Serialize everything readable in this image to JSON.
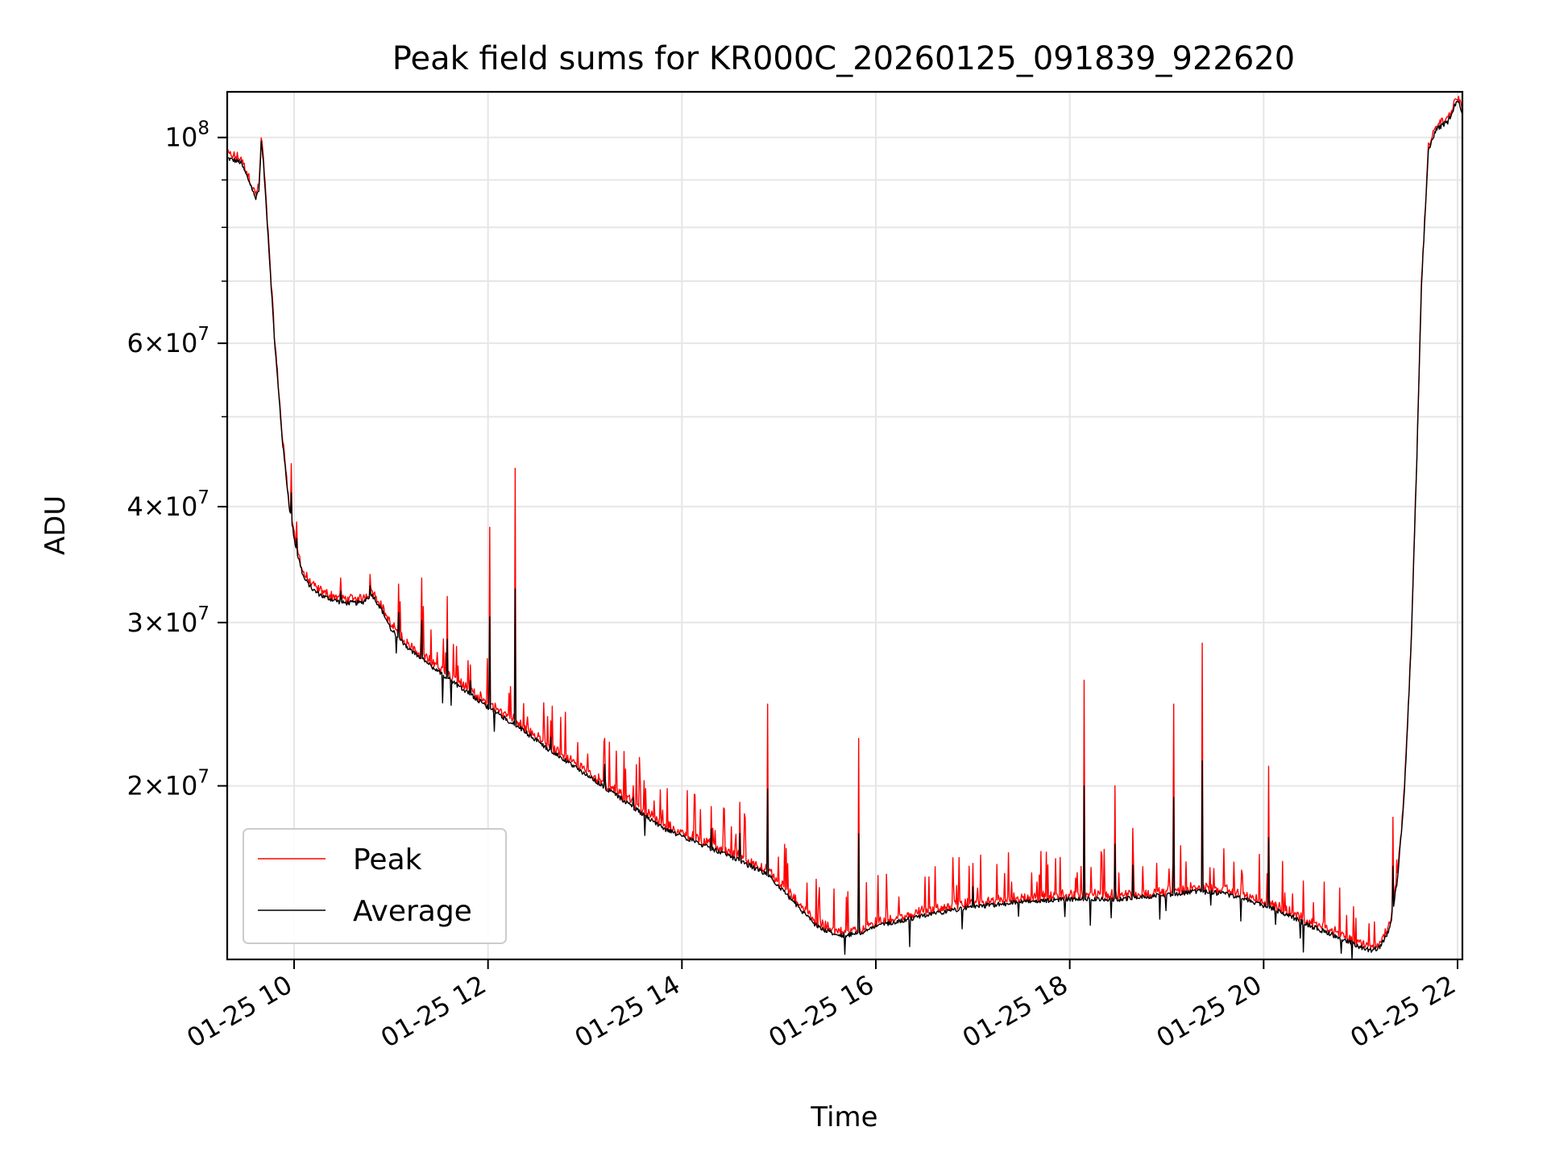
{
  "chart_data": {
    "type": "line",
    "title": "Peak field sums for KR000C_20260125_091839_922620",
    "xlabel": "Time",
    "ylabel": "ADU",
    "yscale": "log",
    "xlim": [
      9.31,
      22.05
    ],
    "ylim": [
      13000000,
      112000000
    ],
    "grid": true,
    "x_ticks": [
      {
        "value": 10,
        "label": "01-25 10"
      },
      {
        "value": 12,
        "label": "01-25 12"
      },
      {
        "value": 14,
        "label": "01-25 14"
      },
      {
        "value": 16,
        "label": "01-25 16"
      },
      {
        "value": 18,
        "label": "01-25 18"
      },
      {
        "value": 20,
        "label": "01-25 20"
      },
      {
        "value": 22,
        "label": "01-25 22"
      }
    ],
    "y_ticks": [
      {
        "value": 20000000,
        "base": "2",
        "exp": "7"
      },
      {
        "value": 30000000,
        "base": "3",
        "exp": "7"
      },
      {
        "value": 40000000,
        "base": "4",
        "exp": "7"
      },
      {
        "value": 60000000,
        "base": "6",
        "exp": "7"
      },
      {
        "value": 100000000,
        "base": "",
        "exp": "8"
      }
    ],
    "legend": {
      "location": "lower-left"
    },
    "series": [
      {
        "name": "Peak",
        "color": "#ff0000",
        "baseline": "Average",
        "spikes": [
          {
            "x": 9.97,
            "y": 44500000
          },
          {
            "x": 10.03,
            "y": 38500000
          },
          {
            "x": 10.48,
            "y": 33500000
          },
          {
            "x": 10.78,
            "y": 33800000
          },
          {
            "x": 11.08,
            "y": 33000000
          },
          {
            "x": 11.32,
            "y": 33500000
          },
          {
            "x": 11.58,
            "y": 32000000
          },
          {
            "x": 11.82,
            "y": 27000000
          },
          {
            "x": 12.02,
            "y": 38000000
          },
          {
            "x": 12.28,
            "y": 44000000
          },
          {
            "x": 12.65,
            "y": 23500000
          },
          {
            "x": 13.2,
            "y": 22500000
          },
          {
            "x": 13.5,
            "y": 20000000
          },
          {
            "x": 14.3,
            "y": 19000000
          },
          {
            "x": 14.6,
            "y": 19200000
          },
          {
            "x": 14.88,
            "y": 24500000
          },
          {
            "x": 15.82,
            "y": 22500000
          },
          {
            "x": 17.0,
            "y": 16500000
          },
          {
            "x": 18.15,
            "y": 26000000
          },
          {
            "x": 18.47,
            "y": 20000000
          },
          {
            "x": 18.65,
            "y": 18000000
          },
          {
            "x": 19.07,
            "y": 24500000
          },
          {
            "x": 19.37,
            "y": 28500000
          },
          {
            "x": 20.05,
            "y": 21000000
          },
          {
            "x": 21.33,
            "y": 18500000
          }
        ]
      },
      {
        "name": "Average",
        "color": "#000000",
        "x": [
          9.31,
          9.45,
          9.55,
          9.6,
          9.64,
          9.66,
          9.68,
          9.72,
          9.8,
          9.88,
          9.95,
          10.02,
          10.1,
          10.2,
          10.3,
          10.5,
          10.7,
          10.8,
          10.9,
          11.0,
          11.2,
          11.5,
          11.8,
          12.0,
          12.3,
          12.6,
          13.0,
          13.4,
          13.8,
          14.2,
          14.6,
          14.9,
          15.2,
          15.4,
          15.6,
          15.8,
          16.0,
          16.5,
          17.0,
          17.5,
          18.0,
          18.5,
          19.0,
          19.3,
          19.6,
          19.9,
          20.2,
          20.5,
          20.8,
          21.0,
          21.1,
          21.2,
          21.3,
          21.38,
          21.45,
          21.52,
          21.58,
          21.63,
          21.7,
          21.78,
          21.9,
          22.0,
          22.05
        ],
        "y": [
          95000000,
          94000000,
          89000000,
          86000000,
          88000000,
          99000000,
          95000000,
          82000000,
          60000000,
          47000000,
          40000000,
          36000000,
          33500000,
          32500000,
          32000000,
          31500000,
          31500000,
          32200000,
          31000000,
          29500000,
          28000000,
          26500000,
          25200000,
          24300000,
          23200000,
          22000000,
          20600000,
          19300000,
          18000000,
          17300000,
          16600000,
          16000000,
          14800000,
          14100000,
          13800000,
          13850000,
          14100000,
          14500000,
          14800000,
          15000000,
          15100000,
          15100000,
          15250000,
          15400000,
          15300000,
          15000000,
          14600000,
          14100000,
          13700000,
          13400000,
          13300000,
          13400000,
          14000000,
          15800000,
          19500000,
          28000000,
          45000000,
          70000000,
          97000000,
          102000000,
          104000000,
          110000000,
          106000000
        ]
      }
    ]
  }
}
